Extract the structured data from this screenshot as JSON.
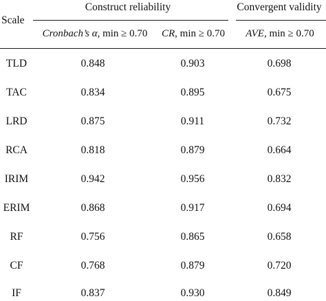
{
  "table": {
    "header": {
      "scale": "Scale",
      "group1": "Construct reliability",
      "group2": "Convergent validity",
      "col1_italic": "Cronbach’s α",
      "col1_rest": ", min ≥ 0.70",
      "col2_italic": "CR",
      "col2_rest": ", min ≥ 0.70",
      "col3_italic": "AVE",
      "col3_rest": ", min ≥ 0.70"
    },
    "rows": [
      {
        "scale": "TLD",
        "alpha": "0.848",
        "cr": "0.903",
        "ave": "0.698"
      },
      {
        "scale": "TAC",
        "alpha": "0.834",
        "cr": "0.895",
        "ave": "0.675"
      },
      {
        "scale": "LRD",
        "alpha": "0.875",
        "cr": "0.911",
        "ave": "0.732"
      },
      {
        "scale": "RCA",
        "alpha": "0.818",
        "cr": "0.879",
        "ave": "0.664"
      },
      {
        "scale": "IRIM",
        "alpha": "0.942",
        "cr": "0.956",
        "ave": "0.832"
      },
      {
        "scale": "ERIM",
        "alpha": "0.868",
        "cr": "0.917",
        "ave": "0.694"
      },
      {
        "scale": "RF",
        "alpha": "0.756",
        "cr": "0.865",
        "ave": "0.658"
      },
      {
        "scale": "CF",
        "alpha": "0.768",
        "cr": "0.879",
        "ave": "0.720"
      },
      {
        "scale": "IF",
        "alpha": "0.837",
        "cr": "0.930",
        "ave": "0.849"
      }
    ]
  }
}
